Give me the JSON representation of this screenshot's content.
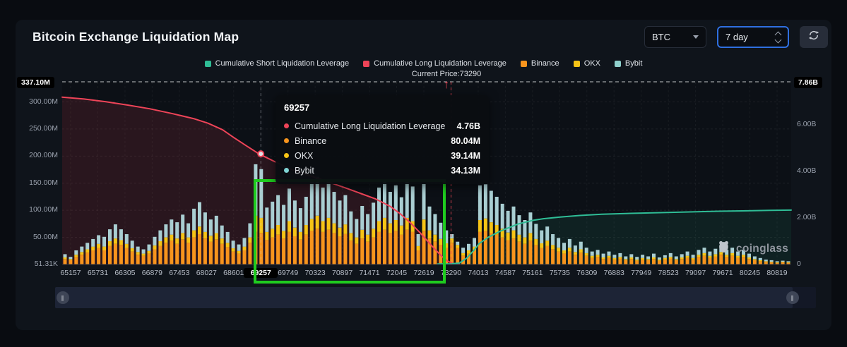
{
  "header": {
    "title": "Bitcoin Exchange Liquidation Map",
    "coin_select": {
      "value": "BTC"
    },
    "range_select": {
      "value": "7 day"
    }
  },
  "legend": {
    "items": [
      {
        "label": "Cumulative Short Liquidation Leverage",
        "color": "#2fbd96"
      },
      {
        "label": "Cumulative Long Liquidation Leverage",
        "color": "#ee4458"
      },
      {
        "label": "Binance",
        "color": "#f7941d"
      },
      {
        "label": "OKX",
        "color": "#f6c416"
      },
      {
        "label": "Bybit",
        "color": "#8fd0cc"
      }
    ],
    "current_price_label": "Current Price:73290"
  },
  "tooltip": {
    "title": "69257",
    "rows": [
      {
        "label": "Cumulative Long Liquidation Leverage",
        "value": "4.76B",
        "color": "#ee4458"
      },
      {
        "label": "Binance",
        "value": "80.04M",
        "color": "#f7941d"
      },
      {
        "label": "OKX",
        "value": "39.14M",
        "color": "#f6c416"
      },
      {
        "label": "Bybit",
        "value": "34.13M",
        "color": "#7fd4d4"
      }
    ]
  },
  "watermark": {
    "text": "coinglass"
  },
  "chart_data": {
    "type": "mixed",
    "title": "Bitcoin Exchange Liquidation Map",
    "x_labels": [
      "65157",
      "65731",
      "66305",
      "66879",
      "67453",
      "68027",
      "68601",
      "69257",
      "69749",
      "70323",
      "70897",
      "71471",
      "72045",
      "72619",
      "73290",
      "74013",
      "74587",
      "75161",
      "75735",
      "76309",
      "76883",
      "77949",
      "78523",
      "79097",
      "79671",
      "80245",
      "80819"
    ],
    "x_highlight_index": 7,
    "current_price_index": 14,
    "current_price": 73290,
    "left_axis": {
      "unit": "M",
      "max": 337.1,
      "top_label": "337.10M",
      "bottom_label": "51.31K",
      "ticks": [
        {
          "label": "300.00M",
          "value": 300
        },
        {
          "label": "250.00M",
          "value": 250
        },
        {
          "label": "200.00M",
          "value": 200
        },
        {
          "label": "150.00M",
          "value": 150
        },
        {
          "label": "100.00M",
          "value": 100
        },
        {
          "label": "50.00M",
          "value": 50
        }
      ]
    },
    "right_axis": {
      "unit": "B",
      "max": 7.86,
      "top_label": "7.86B",
      "ticks": [
        {
          "label": "6.00B",
          "value": 6
        },
        {
          "label": "4.00B",
          "value": 4
        },
        {
          "label": "2.00B",
          "value": 2
        },
        {
          "label": "0",
          "value": 0
        }
      ]
    },
    "lines": [
      {
        "name": "Cumulative Long Liquidation Leverage",
        "axis": "right",
        "color": "#ee4458",
        "fill": "rgba(237,66,86,0.13)",
        "points": [
          [
            0,
            7.2
          ],
          [
            0.03,
            7.12
          ],
          [
            0.06,
            7.0
          ],
          [
            0.09,
            6.86
          ],
          [
            0.12,
            6.7
          ],
          [
            0.15,
            6.5
          ],
          [
            0.18,
            6.28
          ],
          [
            0.2,
            6.08
          ],
          [
            0.22,
            5.8
          ],
          [
            0.236,
            5.45
          ],
          [
            0.253,
            5.1
          ],
          [
            0.27,
            4.76
          ],
          [
            0.29,
            4.45
          ],
          [
            0.31,
            4.15
          ],
          [
            0.33,
            3.92
          ],
          [
            0.35,
            3.72
          ],
          [
            0.37,
            3.5
          ],
          [
            0.39,
            3.28
          ],
          [
            0.41,
            3.05
          ],
          [
            0.43,
            2.82
          ],
          [
            0.45,
            2.5
          ],
          [
            0.465,
            2.15
          ],
          [
            0.478,
            1.78
          ],
          [
            0.49,
            1.4
          ],
          [
            0.5,
            1.05
          ],
          [
            0.51,
            0.7
          ],
          [
            0.52,
            0.38
          ],
          [
            0.528,
            0.16
          ],
          [
            0.535,
            0.05
          ],
          [
            0.545,
            0.02
          ]
        ]
      },
      {
        "name": "Cumulative Short Liquidation Leverage",
        "axis": "right",
        "color": "#2fbd96",
        "fill": "rgba(47,189,150,0.10)",
        "points": [
          [
            0.515,
            0.02
          ],
          [
            0.53,
            0.02
          ],
          [
            0.545,
            0.06
          ],
          [
            0.555,
            0.28
          ],
          [
            0.565,
            0.62
          ],
          [
            0.572,
            0.9
          ],
          [
            0.585,
            1.18
          ],
          [
            0.6,
            1.42
          ],
          [
            0.61,
            1.55
          ],
          [
            0.625,
            1.74
          ],
          [
            0.646,
            1.9
          ],
          [
            0.66,
            1.97
          ],
          [
            0.683,
            2.04
          ],
          [
            0.71,
            2.11
          ],
          [
            0.74,
            2.16
          ],
          [
            0.78,
            2.2
          ],
          [
            0.82,
            2.23
          ],
          [
            0.86,
            2.26
          ],
          [
            0.9,
            2.29
          ],
          [
            0.94,
            2.31
          ],
          [
            0.97,
            2.33
          ],
          [
            1,
            2.34
          ]
        ]
      }
    ],
    "bars": {
      "series_names": [
        "Binance",
        "OKX",
        "Bybit"
      ],
      "colors": [
        "#f7941d",
        "#f6c416",
        "#a9ced2"
      ],
      "unit": "M",
      "values": [
        [
          10,
          3,
          6
        ],
        [
          8,
          2,
          4
        ],
        [
          14,
          4,
          8
        ],
        [
          18,
          5,
          10
        ],
        [
          22,
          6,
          12
        ],
        [
          26,
          7,
          14
        ],
        [
          30,
          8,
          16
        ],
        [
          26,
          7,
          18
        ],
        [
          34,
          9,
          22
        ],
        [
          38,
          10,
          26
        ],
        [
          36,
          9,
          20
        ],
        [
          30,
          8,
          18
        ],
        [
          24,
          6,
          14
        ],
        [
          18,
          5,
          10
        ],
        [
          16,
          4,
          8
        ],
        [
          20,
          5,
          12
        ],
        [
          28,
          7,
          16
        ],
        [
          34,
          9,
          20
        ],
        [
          40,
          10,
          24
        ],
        [
          44,
          11,
          28
        ],
        [
          38,
          10,
          30
        ],
        [
          46,
          12,
          34
        ],
        [
          40,
          10,
          26
        ],
        [
          50,
          13,
          40
        ],
        [
          56,
          14,
          45
        ],
        [
          48,
          12,
          36
        ],
        [
          42,
          11,
          30
        ],
        [
          46,
          12,
          32
        ],
        [
          38,
          10,
          24
        ],
        [
          32,
          8,
          20
        ],
        [
          24,
          6,
          14
        ],
        [
          20,
          5,
          12
        ],
        [
          26,
          7,
          16
        ],
        [
          40,
          10,
          26
        ],
        [
          60,
          30,
          95
        ],
        [
          58,
          28,
          90
        ],
        [
          45,
          15,
          45
        ],
        [
          50,
          16,
          50
        ],
        [
          55,
          18,
          55
        ],
        [
          48,
          14,
          48
        ],
        [
          60,
          20,
          60
        ],
        [
          52,
          16,
          50
        ],
        [
          46,
          14,
          44
        ],
        [
          55,
          18,
          52
        ],
        [
          62,
          22,
          68
        ],
        [
          66,
          24,
          72
        ],
        [
          60,
          20,
          62
        ],
        [
          64,
          22,
          66
        ],
        [
          58,
          18,
          58
        ],
        [
          52,
          16,
          50
        ],
        [
          56,
          18,
          54
        ],
        [
          44,
          14,
          40
        ],
        [
          38,
          12,
          34
        ],
        [
          48,
          16,
          44
        ],
        [
          42,
          13,
          38
        ],
        [
          50,
          16,
          48
        ],
        [
          60,
          20,
          62
        ],
        [
          64,
          22,
          68
        ],
        [
          58,
          18,
          58
        ],
        [
          62,
          20,
          64
        ],
        [
          55,
          17,
          52
        ],
        [
          64,
          22,
          70
        ],
        [
          60,
          20,
          64
        ],
        [
          26,
          8,
          22
        ],
        [
          62,
          21,
          66
        ],
        [
          48,
          15,
          44
        ],
        [
          42,
          13,
          38
        ],
        [
          36,
          11,
          30
        ],
        [
          30,
          9,
          24
        ],
        [
          40,
          8,
          8
        ],
        [
          30,
          6,
          6
        ],
        [
          16,
          5,
          10
        ],
        [
          20,
          6,
          12
        ],
        [
          26,
          7,
          16
        ],
        [
          60,
          22,
          64
        ],
        [
          62,
          23,
          63
        ],
        [
          58,
          20,
          58
        ],
        [
          55,
          18,
          52
        ],
        [
          50,
          16,
          46
        ],
        [
          45,
          14,
          40
        ],
        [
          48,
          15,
          44
        ],
        [
          42,
          13,
          36
        ],
        [
          38,
          12,
          32
        ],
        [
          44,
          14,
          38
        ],
        [
          36,
          11,
          28
        ],
        [
          30,
          9,
          24
        ],
        [
          34,
          10,
          26
        ],
        [
          28,
          8,
          20
        ],
        [
          24,
          7,
          18
        ],
        [
          20,
          6,
          14
        ],
        [
          24,
          7,
          16
        ],
        [
          18,
          5,
          12
        ],
        [
          22,
          6,
          14
        ],
        [
          16,
          5,
          10
        ],
        [
          12,
          4,
          8
        ],
        [
          14,
          4,
          9
        ],
        [
          10,
          3,
          7
        ],
        [
          12,
          4,
          8
        ],
        [
          9,
          3,
          6
        ],
        [
          11,
          3,
          7
        ],
        [
          8,
          2,
          5
        ],
        [
          10,
          3,
          6
        ],
        [
          7,
          2,
          5
        ],
        [
          9,
          3,
          6
        ],
        [
          8,
          2,
          5
        ],
        [
          10,
          3,
          7
        ],
        [
          7,
          2,
          4
        ],
        [
          9,
          3,
          5
        ],
        [
          11,
          3,
          7
        ],
        [
          8,
          2,
          5
        ],
        [
          10,
          3,
          6
        ],
        [
          12,
          4,
          8
        ],
        [
          9,
          3,
          6
        ],
        [
          14,
          4,
          9
        ],
        [
          16,
          5,
          10
        ],
        [
          12,
          4,
          8
        ],
        [
          15,
          4,
          10
        ],
        [
          18,
          5,
          12
        ],
        [
          14,
          4,
          9
        ],
        [
          16,
          5,
          10
        ],
        [
          12,
          4,
          8
        ],
        [
          14,
          4,
          9
        ],
        [
          10,
          3,
          7
        ],
        [
          8,
          2,
          5
        ],
        [
          6,
          2,
          4
        ],
        [
          5,
          1,
          3
        ],
        [
          4,
          1,
          3
        ],
        [
          3,
          1,
          2
        ],
        [
          4,
          1,
          2
        ],
        [
          3,
          1,
          2
        ]
      ]
    },
    "marker": {
      "x_index": 7,
      "value": 4.76,
      "axis": "right"
    }
  }
}
